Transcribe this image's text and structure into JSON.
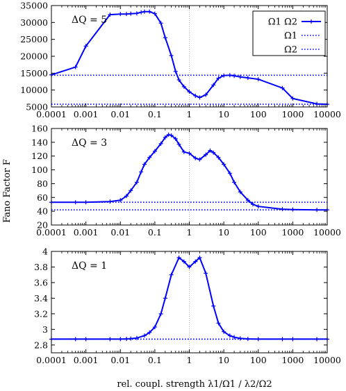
{
  "figure": {
    "ylabel": "Fano Factor F",
    "xlabel": "rel. coupl. strength λ1/Ω1 / λ2/Ω2",
    "line_color": "#0000ff"
  },
  "chart_data": [
    {
      "type": "line",
      "panel_label": "ΔQ = 5",
      "xscale": "log",
      "xlim": [
        0.0001,
        10000
      ],
      "ylim": [
        5000,
        35000
      ],
      "xticks": [
        "0.0001",
        "0.001",
        "0.01",
        "0.1",
        "1",
        "10",
        "100",
        "1000",
        "10000"
      ],
      "yticks": [
        "5000",
        "10000",
        "15000",
        "20000",
        "25000",
        "30000",
        "35000"
      ],
      "legend": {
        "position": "top-right",
        "entries": [
          {
            "label": "Ω1 Ω2",
            "style": "solid-with-markers"
          },
          {
            "label": "Ω1",
            "style": "dotted"
          },
          {
            "label": "Ω2",
            "style": "dotted"
          }
        ]
      },
      "series": [
        {
          "name": "Ω1 Ω2",
          "x": [
            0.0001,
            0.0005,
            0.001,
            0.005,
            0.01,
            0.015,
            0.02,
            0.03,
            0.04,
            0.05,
            0.07,
            0.1,
            0.15,
            0.2,
            0.3,
            0.4,
            0.5,
            0.7,
            1,
            1.5,
            2,
            3,
            5,
            7,
            10,
            15,
            20,
            30,
            50,
            100,
            500,
            1000,
            5000,
            10000
          ],
          "y": [
            14500,
            16800,
            23000,
            32300,
            32500,
            32500,
            32600,
            32700,
            33000,
            33200,
            33200,
            32600,
            29800,
            25500,
            20200,
            15500,
            13000,
            11000,
            9500,
            8300,
            7800,
            8600,
            11500,
            13500,
            14300,
            14400,
            14200,
            13900,
            13600,
            13200,
            10600,
            7500,
            5900,
            5800
          ]
        },
        {
          "name": "Ω1",
          "x": [
            0.0001,
            10000
          ],
          "y": [
            14400,
            14400
          ]
        },
        {
          "name": "Ω2",
          "x": [
            0.0001,
            10000
          ],
          "y": [
            5800,
            5800
          ]
        }
      ]
    },
    {
      "type": "line",
      "panel_label": "ΔQ = 3",
      "xscale": "log",
      "xlim": [
        0.0001,
        10000
      ],
      "ylim": [
        20,
        160
      ],
      "xticks": [
        "0.0001",
        "0.001",
        "0.01",
        "0.1",
        "1",
        "10",
        "100",
        "1000",
        "10000"
      ],
      "yticks": [
        "20",
        "40",
        "60",
        "80",
        "100",
        "120",
        "140",
        "160"
      ],
      "series": [
        {
          "name": "Ω1 Ω2",
          "x": [
            0.0001,
            0.0005,
            0.001,
            0.005,
            0.01,
            0.015,
            0.02,
            0.03,
            0.04,
            0.05,
            0.07,
            0.1,
            0.15,
            0.2,
            0.25,
            0.3,
            0.4,
            0.5,
            0.7,
            1,
            1.5,
            2,
            3,
            4,
            5,
            7,
            10,
            15,
            20,
            30,
            50,
            70,
            100,
            500,
            1000,
            5000,
            10000
          ],
          "y": [
            53,
            53,
            53,
            54,
            56,
            62,
            70,
            82,
            97,
            108,
            118,
            127,
            138,
            147,
            151,
            150,
            145,
            137,
            126,
            124,
            117,
            115,
            122,
            128,
            125,
            118,
            108,
            95,
            82,
            68,
            56,
            50,
            47,
            43,
            42.5,
            42,
            42
          ]
        },
        {
          "name": "Ω1",
          "x": [
            0.0001,
            10000
          ],
          "y": [
            53,
            53
          ]
        },
        {
          "name": "Ω2",
          "x": [
            0.0001,
            10000
          ],
          "y": [
            42,
            42
          ]
        }
      ]
    },
    {
      "type": "line",
      "panel_label": "ΔQ = 1",
      "xscale": "log",
      "xlim": [
        0.0001,
        10000
      ],
      "ylim": [
        2.7,
        4
      ],
      "xticks": [
        "0.0001",
        "0.001",
        "0.01",
        "0.1",
        "1",
        "10",
        "100",
        "1000",
        "10000"
      ],
      "yticks": [
        "2.8",
        "3",
        "3.2",
        "3.4",
        "3.6",
        "3.8",
        "4"
      ],
      "series": [
        {
          "name": "Ω1 Ω2",
          "x": [
            0.0001,
            0.0005,
            0.001,
            0.005,
            0.01,
            0.015,
            0.02,
            0.03,
            0.05,
            0.07,
            0.1,
            0.15,
            0.2,
            0.3,
            0.5,
            0.7,
            1,
            1.5,
            2,
            3,
            5,
            7,
            10,
            15,
            20,
            30,
            50,
            100,
            500,
            1000,
            5000,
            10000
          ],
          "y": [
            2.875,
            2.875,
            2.875,
            2.875,
            2.876,
            2.878,
            2.882,
            2.89,
            2.92,
            2.96,
            3.03,
            3.2,
            3.4,
            3.7,
            3.92,
            3.87,
            3.8,
            3.87,
            3.92,
            3.72,
            3.3,
            3.08,
            2.97,
            2.92,
            2.9,
            2.885,
            2.878,
            2.876,
            2.875,
            2.875,
            2.875,
            2.875
          ]
        },
        {
          "name": "Ω1",
          "x": [
            0.0001,
            10000
          ],
          "y": [
            2.875,
            2.875
          ]
        },
        {
          "name": "Ω2",
          "x": [
            0.0001,
            10000
          ],
          "y": [
            2.875,
            2.875
          ]
        }
      ]
    }
  ]
}
